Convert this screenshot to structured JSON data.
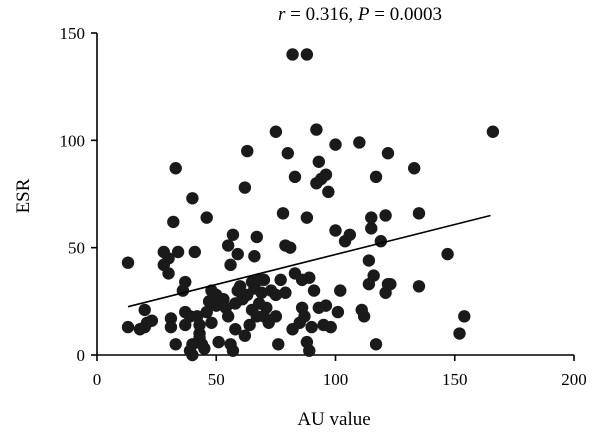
{
  "chart_data": {
    "type": "scatter",
    "title": "r = 0.316, P = 0.0003",
    "title_parts": {
      "r_symbol": "r",
      "r_value": " = 0.316, ",
      "p_symbol": "P",
      "p_value": " = 0.0003"
    },
    "xlabel": "AU value",
    "ylabel": "ESR",
    "xlim": [
      0,
      200
    ],
    "ylim": [
      0,
      150
    ],
    "xticks": [
      0,
      50,
      100,
      150,
      200
    ],
    "yticks": [
      0,
      50,
      100,
      150
    ],
    "xtick_labels": [
      "0",
      "50",
      "100",
      "150",
      "200"
    ],
    "ytick_labels": [
      "0",
      "50",
      "100",
      "150"
    ],
    "grid": false,
    "fit_line": {
      "x": [
        13,
        165
      ],
      "y": [
        22.5,
        65
      ]
    },
    "points": [
      [
        13,
        43
      ],
      [
        13,
        13
      ],
      [
        18,
        12
      ],
      [
        20,
        13
      ],
      [
        21,
        15
      ],
      [
        20,
        21
      ],
      [
        23,
        16
      ],
      [
        28,
        42
      ],
      [
        28,
        48
      ],
      [
        30,
        45
      ],
      [
        30,
        38
      ],
      [
        31,
        17
      ],
      [
        31,
        13
      ],
      [
        32,
        62
      ],
      [
        33,
        87
      ],
      [
        33,
        5
      ],
      [
        34,
        48
      ],
      [
        36,
        30
      ],
      [
        37,
        34
      ],
      [
        37,
        20
      ],
      [
        37,
        14
      ],
      [
        39,
        18
      ],
      [
        39,
        2
      ],
      [
        40,
        5
      ],
      [
        40,
        0
      ],
      [
        40,
        73
      ],
      [
        41,
        48
      ],
      [
        42,
        18
      ],
      [
        43,
        10
      ],
      [
        43,
        8
      ],
      [
        43,
        14
      ],
      [
        44,
        5
      ],
      [
        45,
        3
      ],
      [
        46,
        64
      ],
      [
        46,
        20
      ],
      [
        47,
        25
      ],
      [
        48,
        15
      ],
      [
        48,
        30
      ],
      [
        50,
        23
      ],
      [
        50,
        28
      ],
      [
        51,
        6
      ],
      [
        53,
        26
      ],
      [
        54,
        22
      ],
      [
        55,
        51
      ],
      [
        55,
        18
      ],
      [
        56,
        5
      ],
      [
        56,
        42
      ],
      [
        57,
        56
      ],
      [
        57,
        2
      ],
      [
        58,
        24
      ],
      [
        58,
        12
      ],
      [
        59,
        47
      ],
      [
        59,
        30
      ],
      [
        60,
        32
      ],
      [
        61,
        26
      ],
      [
        62,
        78
      ],
      [
        62,
        9
      ],
      [
        63,
        95
      ],
      [
        63,
        28
      ],
      [
        64,
        14
      ],
      [
        65,
        21
      ],
      [
        65,
        34
      ],
      [
        66,
        46
      ],
      [
        66,
        31
      ],
      [
        67,
        55
      ],
      [
        67,
        18
      ],
      [
        68,
        24
      ],
      [
        68,
        35
      ],
      [
        69,
        29
      ],
      [
        70,
        35
      ],
      [
        70,
        18
      ],
      [
        71,
        22
      ],
      [
        72,
        15
      ],
      [
        73,
        30
      ],
      [
        75,
        104
      ],
      [
        75,
        18
      ],
      [
        75,
        28
      ],
      [
        76,
        5
      ],
      [
        77,
        35
      ],
      [
        78,
        66
      ],
      [
        79,
        51
      ],
      [
        79,
        29
      ],
      [
        80,
        94
      ],
      [
        81,
        50
      ],
      [
        82,
        140
      ],
      [
        82,
        12
      ],
      [
        83,
        83
      ],
      [
        83,
        38
      ],
      [
        85,
        15
      ],
      [
        86,
        22
      ],
      [
        86,
        35
      ],
      [
        87,
        18
      ],
      [
        88,
        140
      ],
      [
        88,
        64
      ],
      [
        88,
        6
      ],
      [
        89,
        2
      ],
      [
        89,
        36
      ],
      [
        90,
        13
      ],
      [
        91,
        30
      ],
      [
        92,
        105
      ],
      [
        92,
        80
      ],
      [
        93,
        90
      ],
      [
        93,
        22
      ],
      [
        94,
        82
      ],
      [
        95,
        14
      ],
      [
        96,
        23
      ],
      [
        96,
        84
      ],
      [
        97,
        76
      ],
      [
        98,
        13
      ],
      [
        100,
        58
      ],
      [
        100,
        98
      ],
      [
        101,
        20
      ],
      [
        102,
        30
      ],
      [
        104,
        53
      ],
      [
        106,
        56
      ],
      [
        110,
        99
      ],
      [
        111,
        21
      ],
      [
        112,
        18
      ],
      [
        114,
        44
      ],
      [
        114,
        33
      ],
      [
        115,
        64
      ],
      [
        115,
        59
      ],
      [
        116,
        37
      ],
      [
        117,
        5
      ],
      [
        117,
        83
      ],
      [
        119,
        53
      ],
      [
        121,
        65
      ],
      [
        121,
        29
      ],
      [
        122,
        33
      ],
      [
        122,
        94
      ],
      [
        123,
        33
      ],
      [
        133,
        87
      ],
      [
        135,
        32
      ],
      [
        135,
        66
      ],
      [
        147,
        47
      ],
      [
        152,
        10
      ],
      [
        154,
        18
      ],
      [
        166,
        104
      ]
    ]
  }
}
